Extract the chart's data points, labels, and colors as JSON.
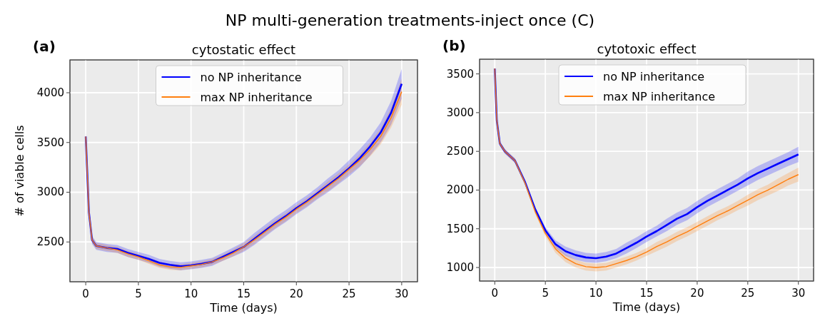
{
  "chart_data": [
    {
      "type": "line",
      "title": "cytostatic effect",
      "xlabel": "Time (days)",
      "ylabel": "# of viable cells",
      "annotations": [
        "NP multi-generation treatments-inject once (C)",
        "(a)"
      ],
      "legend": "top",
      "grid": true,
      "xlim": [
        -1.5,
        31.5
      ],
      "xticks": [
        0,
        5,
        10,
        15,
        20,
        25,
        30
      ],
      "ylim": [
        2100,
        4330
      ],
      "yticks": [
        2500,
        3000,
        3500,
        4000
      ],
      "series": [
        {
          "name": "no NP inheritance",
          "color": "#0000ff",
          "x": [
            0,
            0.3,
            0.6,
            1,
            2,
            3,
            4,
            5,
            6,
            7,
            8,
            9,
            10,
            11,
            12,
            13,
            14,
            15,
            16,
            17,
            18,
            19,
            20,
            21,
            22,
            23,
            24,
            25,
            26,
            27,
            28,
            29,
            30
          ],
          "values": [
            3560,
            2800,
            2520,
            2460,
            2440,
            2430,
            2390,
            2360,
            2330,
            2290,
            2270,
            2255,
            2265,
            2280,
            2300,
            2350,
            2400,
            2450,
            2530,
            2610,
            2690,
            2760,
            2840,
            2910,
            2990,
            3070,
            3150,
            3240,
            3340,
            3460,
            3600,
            3800,
            4090
          ],
          "lower": [
            3520,
            2760,
            2480,
            2420,
            2400,
            2390,
            2350,
            2320,
            2290,
            2250,
            2230,
            2215,
            2225,
            2240,
            2260,
            2310,
            2355,
            2400,
            2470,
            2550,
            2630,
            2700,
            2780,
            2850,
            2930,
            3000,
            3080,
            3160,
            3250,
            3370,
            3500,
            3680,
            3940
          ],
          "upper": [
            3600,
            2840,
            2560,
            2500,
            2480,
            2470,
            2430,
            2400,
            2370,
            2330,
            2310,
            2295,
            2305,
            2320,
            2340,
            2390,
            2445,
            2500,
            2590,
            2670,
            2750,
            2820,
            2900,
            2970,
            3050,
            3140,
            3220,
            3320,
            3430,
            3550,
            3700,
            3920,
            4240
          ]
        },
        {
          "name": "max NP inheritance",
          "color": "#ff7f0e",
          "x": [
            0,
            0.3,
            0.6,
            1,
            2,
            3,
            4,
            5,
            6,
            7,
            8,
            9,
            10,
            11,
            12,
            13,
            14,
            15,
            16,
            17,
            18,
            19,
            20,
            21,
            22,
            23,
            24,
            25,
            26,
            27,
            28,
            29,
            30
          ],
          "values": [
            3560,
            2800,
            2520,
            2460,
            2440,
            2420,
            2380,
            2350,
            2310,
            2270,
            2250,
            2245,
            2260,
            2275,
            2300,
            2340,
            2390,
            2450,
            2520,
            2600,
            2680,
            2750,
            2830,
            2900,
            2980,
            3060,
            3140,
            3230,
            3320,
            3430,
            3560,
            3750,
            4010
          ],
          "lower": [
            3520,
            2770,
            2490,
            2430,
            2410,
            2390,
            2350,
            2320,
            2280,
            2240,
            2220,
            2215,
            2230,
            2245,
            2270,
            2310,
            2355,
            2410,
            2480,
            2560,
            2640,
            2710,
            2790,
            2860,
            2940,
            3010,
            3090,
            3180,
            3260,
            3360,
            3480,
            3650,
            3880
          ],
          "upper": [
            3600,
            2830,
            2550,
            2490,
            2470,
            2450,
            2410,
            2380,
            2340,
            2300,
            2280,
            2275,
            2290,
            2305,
            2330,
            2370,
            2425,
            2490,
            2560,
            2640,
            2720,
            2790,
            2870,
            2940,
            3020,
            3110,
            3190,
            3280,
            3380,
            3500,
            3640,
            3850,
            4140
          ]
        }
      ]
    },
    {
      "type": "line",
      "title": "cytotoxic effect",
      "xlabel": "Time (days)",
      "annotations": [
        "(b)"
      ],
      "legend": "top",
      "grid": true,
      "xlim": [
        -1.5,
        31.5
      ],
      "xticks": [
        0,
        5,
        10,
        15,
        20,
        25,
        30
      ],
      "ylim": [
        825,
        3690
      ],
      "yticks": [
        1000,
        1500,
        2000,
        2500,
        3000,
        3500
      ],
      "series": [
        {
          "name": "no NP inheritance",
          "color": "#0000ff",
          "x": [
            0,
            0.2,
            0.5,
            1,
            2,
            3,
            4,
            5,
            6,
            7,
            8,
            9,
            10,
            11,
            12,
            13,
            14,
            15,
            16,
            17,
            18,
            19,
            20,
            21,
            22,
            23,
            24,
            25,
            26,
            27,
            28,
            29,
            30
          ],
          "values": [
            3570,
            2900,
            2600,
            2500,
            2380,
            2100,
            1750,
            1480,
            1300,
            1210,
            1160,
            1130,
            1120,
            1140,
            1180,
            1250,
            1320,
            1400,
            1470,
            1550,
            1630,
            1690,
            1780,
            1860,
            1930,
            2000,
            2070,
            2150,
            2220,
            2280,
            2340,
            2400,
            2460
          ],
          "lower": [
            3540,
            2870,
            2570,
            2470,
            2350,
            2070,
            1720,
            1440,
            1250,
            1150,
            1100,
            1070,
            1060,
            1080,
            1120,
            1180,
            1250,
            1330,
            1400,
            1470,
            1550,
            1610,
            1700,
            1780,
            1850,
            1920,
            1990,
            2060,
            2130,
            2190,
            2250,
            2310,
            2360
          ],
          "upper": [
            3600,
            2930,
            2630,
            2530,
            2410,
            2130,
            1780,
            1520,
            1350,
            1270,
            1220,
            1190,
            1180,
            1200,
            1240,
            1320,
            1390,
            1470,
            1540,
            1630,
            1710,
            1770,
            1860,
            1940,
            2010,
            2080,
            2150,
            2240,
            2310,
            2370,
            2430,
            2490,
            2560
          ]
        },
        {
          "name": "max NP inheritance",
          "color": "#ff7f0e",
          "x": [
            0,
            0.2,
            0.5,
            1,
            2,
            3,
            4,
            5,
            6,
            7,
            8,
            9,
            10,
            11,
            12,
            13,
            14,
            15,
            16,
            17,
            18,
            19,
            20,
            21,
            22,
            23,
            24,
            25,
            26,
            27,
            28,
            29,
            30
          ],
          "values": [
            3570,
            2900,
            2600,
            2500,
            2380,
            2090,
            1720,
            1440,
            1240,
            1120,
            1050,
            1010,
            1000,
            1010,
            1050,
            1090,
            1140,
            1200,
            1270,
            1330,
            1400,
            1460,
            1530,
            1600,
            1670,
            1730,
            1800,
            1870,
            1940,
            2000,
            2070,
            2140,
            2200
          ],
          "lower": [
            3540,
            2870,
            2570,
            2470,
            2350,
            2060,
            1690,
            1400,
            1190,
            1070,
            1000,
            960,
            950,
            960,
            1000,
            1040,
            1090,
            1150,
            1210,
            1270,
            1340,
            1400,
            1470,
            1540,
            1610,
            1670,
            1740,
            1800,
            1870,
            1930,
            1990,
            2060,
            2110
          ],
          "upper": [
            3600,
            2930,
            2630,
            2530,
            2410,
            2120,
            1750,
            1480,
            1290,
            1170,
            1100,
            1060,
            1050,
            1060,
            1100,
            1140,
            1190,
            1250,
            1330,
            1390,
            1460,
            1520,
            1590,
            1660,
            1730,
            1790,
            1860,
            1940,
            2010,
            2070,
            2150,
            2220,
            2290
          ]
        }
      ]
    }
  ]
}
